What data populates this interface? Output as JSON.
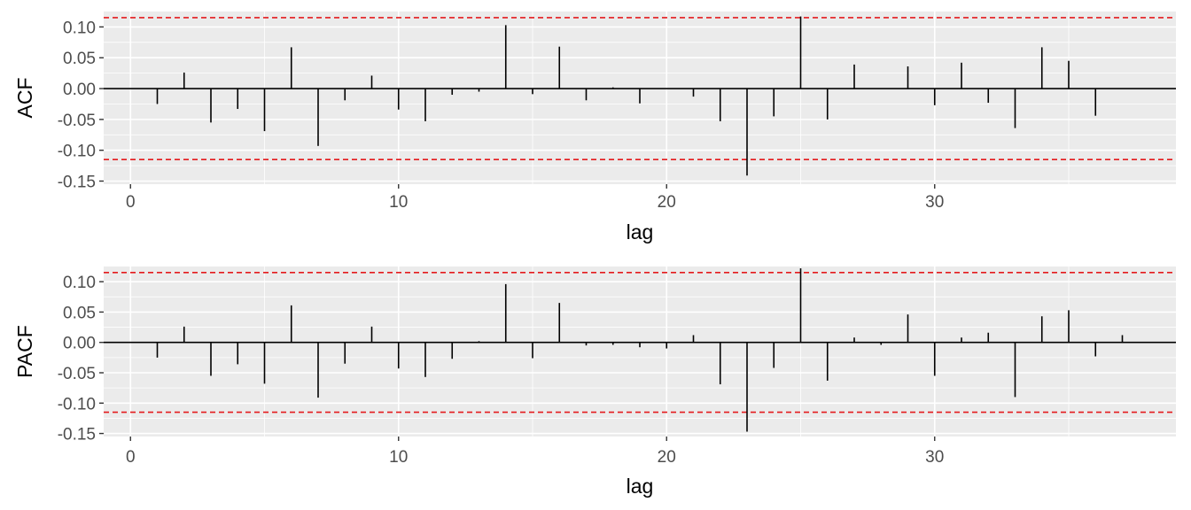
{
  "chart_data": [
    {
      "type": "bar",
      "name": "acf",
      "xlabel": "lag",
      "ylabel": "ACF",
      "xlim": [
        -1,
        39
      ],
      "ylim": [
        -0.155,
        0.125
      ],
      "x_ticks": [
        0,
        10,
        20,
        30
      ],
      "x_tick_labels": [
        "0",
        "10",
        "20",
        "30"
      ],
      "y_ticks": [
        -0.15,
        -0.1,
        -0.05,
        0.0,
        0.05,
        0.1
      ],
      "y_tick_labels": [
        "-0.15",
        "-0.10",
        "-0.05",
        "0.00",
        "0.05",
        "0.10"
      ],
      "ci": 0.115,
      "lags": [
        1,
        2,
        3,
        4,
        5,
        6,
        7,
        8,
        9,
        10,
        11,
        12,
        13,
        14,
        15,
        16,
        17,
        18,
        19,
        20,
        21,
        22,
        23,
        24,
        25,
        26,
        27,
        28,
        29,
        30,
        31,
        32,
        33,
        34,
        35,
        36
      ],
      "values": [
        -0.025,
        0.026,
        -0.055,
        -0.033,
        -0.069,
        0.067,
        -0.093,
        -0.019,
        0.021,
        -0.034,
        -0.053,
        -0.01,
        -0.005,
        0.103,
        -0.009,
        0.068,
        -0.019,
        0.002,
        -0.024,
        0.0,
        -0.013,
        -0.053,
        -0.141,
        -0.045,
        0.117,
        -0.05,
        0.039,
        0.0,
        0.036,
        -0.027,
        0.042,
        -0.023,
        -0.064,
        0.067,
        0.045,
        -0.044
      ],
      "grid": true,
      "colors": {
        "bar": "#000000",
        "ci_line": "#e41a1c",
        "zero_line": "#000000",
        "panel": "#ebebeb"
      }
    },
    {
      "type": "bar",
      "name": "pacf",
      "xlabel": "lag",
      "ylabel": "PACF",
      "xlim": [
        -1,
        39
      ],
      "ylim": [
        -0.155,
        0.125
      ],
      "x_ticks": [
        0,
        10,
        20,
        30
      ],
      "x_tick_labels": [
        "0",
        "10",
        "20",
        "30"
      ],
      "y_ticks": [
        -0.15,
        -0.1,
        -0.05,
        0.0,
        0.05,
        0.1
      ],
      "y_tick_labels": [
        "-0.15",
        "-0.10",
        "-0.05",
        "0.00",
        "0.05",
        "0.10"
      ],
      "ci": 0.115,
      "lags": [
        1,
        2,
        3,
        4,
        5,
        6,
        7,
        8,
        9,
        10,
        11,
        12,
        13,
        14,
        15,
        16,
        17,
        18,
        19,
        20,
        21,
        22,
        23,
        24,
        25,
        26,
        27,
        28,
        29,
        30,
        31,
        32,
        33,
        34,
        35,
        36,
        37
      ],
      "values": [
        -0.025,
        0.026,
        -0.055,
        -0.036,
        -0.068,
        0.061,
        -0.091,
        -0.035,
        0.026,
        -0.043,
        -0.057,
        -0.027,
        0.002,
        0.096,
        -0.026,
        0.065,
        -0.005,
        -0.004,
        -0.008,
        -0.01,
        0.012,
        -0.069,
        -0.147,
        -0.042,
        0.122,
        -0.063,
        0.008,
        -0.004,
        0.046,
        -0.055,
        0.008,
        0.016,
        -0.09,
        0.043,
        0.053,
        -0.023,
        0.012
      ],
      "grid": true,
      "colors": {
        "bar": "#000000",
        "ci_line": "#e41a1c",
        "zero_line": "#000000",
        "panel": "#ebebeb"
      }
    }
  ]
}
